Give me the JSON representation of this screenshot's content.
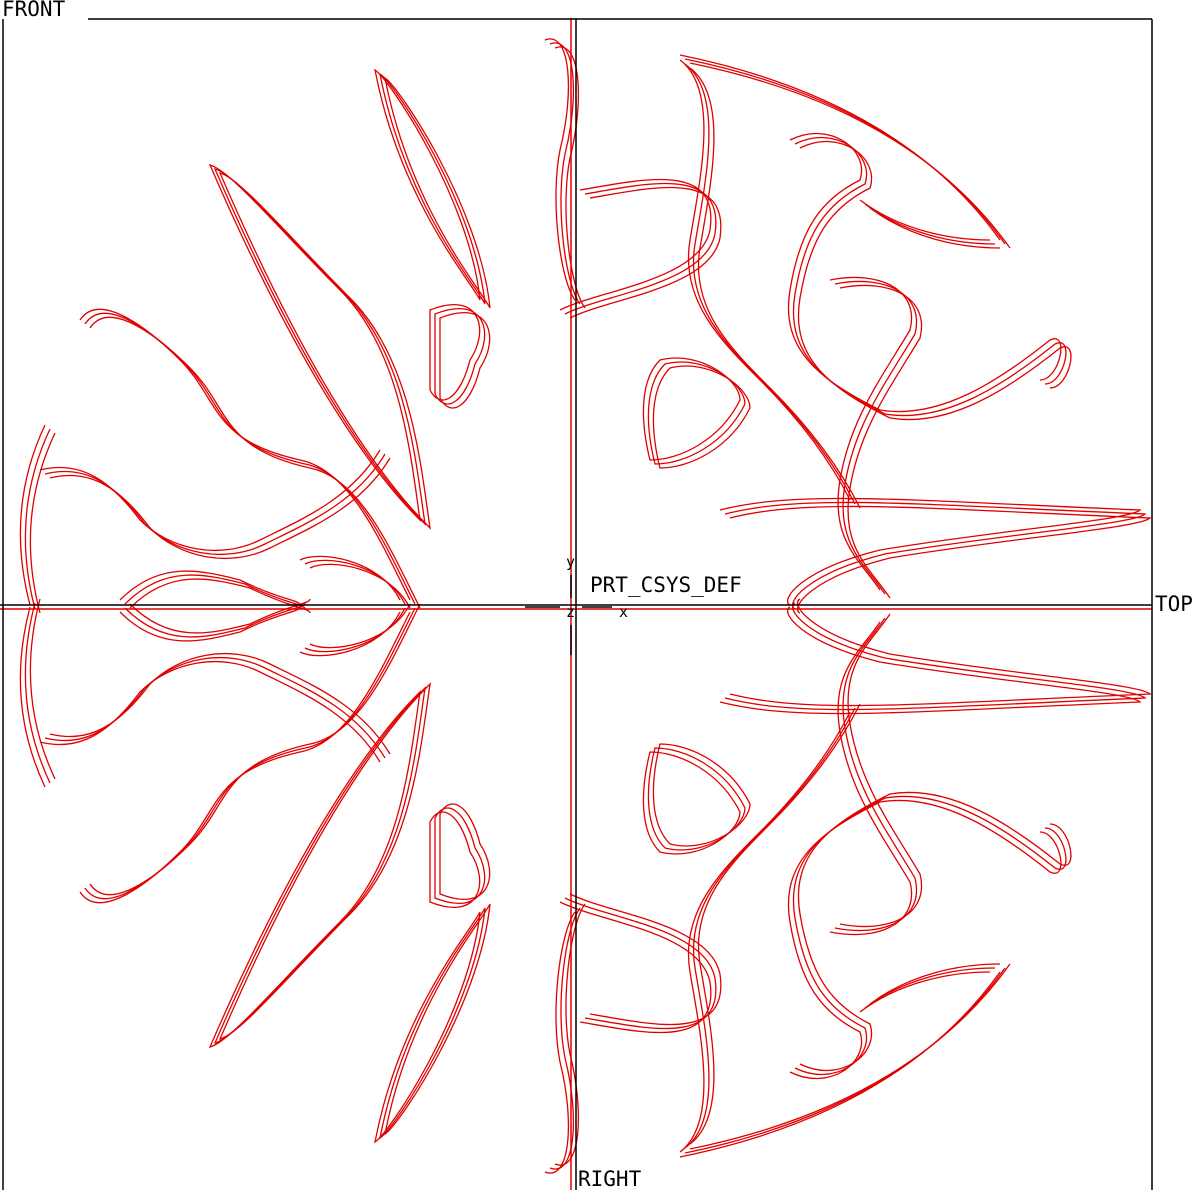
{
  "planes": {
    "front": "FRONT",
    "top": "TOP",
    "right": "RIGHT"
  },
  "csys": {
    "name": "PRT_CSYS_DEF",
    "x": "x",
    "y": "y",
    "z": "z"
  }
}
